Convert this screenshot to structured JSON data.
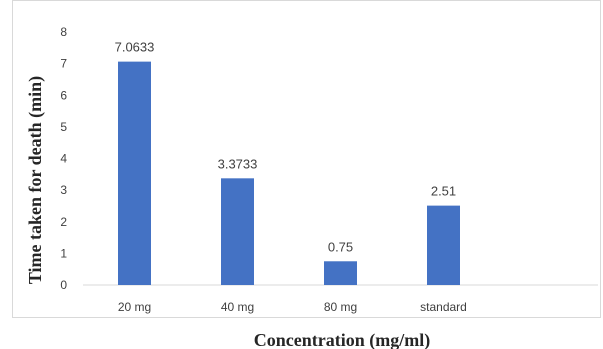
{
  "chart_data": {
    "type": "bar",
    "categories": [
      "20 mg",
      "40 mg",
      "80 mg",
      "standard"
    ],
    "values": [
      7.0633,
      3.3733,
      0.75,
      2.51
    ],
    "data_labels": [
      "7.0633",
      "3.3733",
      "0.75",
      "2.51"
    ],
    "title": "",
    "xlabel": "Concentration (mg/ml)",
    "ylabel": "Time taken for death (min)",
    "ylim": [
      0,
      8
    ],
    "yticks": [
      0,
      1,
      2,
      3,
      4,
      5,
      6,
      7,
      8
    ],
    "grid": false,
    "legend": "none",
    "bar_color": "#4472C4"
  }
}
